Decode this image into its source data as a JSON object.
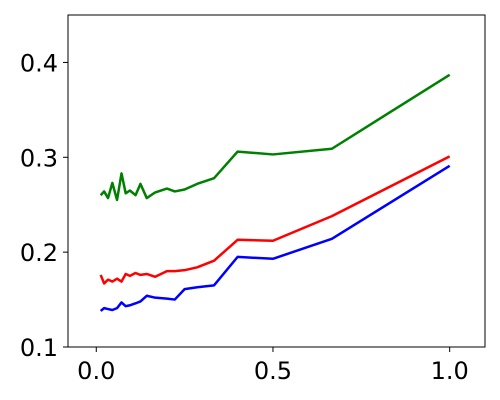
{
  "chart_data": {
    "type": "line",
    "title": "",
    "xlabel": "",
    "ylabel": "",
    "xlim": [
      -0.08,
      1.1
    ],
    "ylim": [
      0.1,
      0.45
    ],
    "x_ticks": [
      {
        "value": 0.0,
        "label": "0.0"
      },
      {
        "value": 0.5,
        "label": "0.5"
      },
      {
        "value": 1.0,
        "label": "1.0"
      }
    ],
    "y_ticks": [
      {
        "value": 0.1,
        "label": "0.1"
      },
      {
        "value": 0.2,
        "label": "0.2"
      },
      {
        "value": 0.3,
        "label": "0.3"
      },
      {
        "value": 0.4,
        "label": "0.4"
      }
    ],
    "grid": false,
    "legend": "none",
    "x": [
      0.0125,
      0.0222,
      0.0333,
      0.0455,
      0.0588,
      0.0714,
      0.0833,
      0.0952,
      0.1111,
      0.125,
      0.1429,
      0.1667,
      0.2,
      0.2222,
      0.25,
      0.2857,
      0.3333,
      0.4,
      0.5,
      0.6667,
      1.0
    ],
    "series": [
      {
        "color": "#008000",
        "values": [
          0.26,
          0.264,
          0.257,
          0.273,
          0.255,
          0.283,
          0.262,
          0.265,
          0.26,
          0.272,
          0.257,
          0.263,
          0.267,
          0.264,
          0.266,
          0.272,
          0.278,
          0.306,
          0.303,
          0.309,
          0.387
        ]
      },
      {
        "color": "#ff0000",
        "values": [
          0.176,
          0.167,
          0.171,
          0.169,
          0.172,
          0.169,
          0.177,
          0.175,
          0.178,
          0.176,
          0.177,
          0.174,
          0.18,
          0.18,
          0.181,
          0.184,
          0.191,
          0.213,
          0.212,
          0.238,
          0.301
        ]
      },
      {
        "color": "#0000ff",
        "values": [
          0.138,
          0.141,
          0.14,
          0.139,
          0.141,
          0.147,
          0.143,
          0.144,
          0.146,
          0.148,
          0.154,
          0.152,
          0.151,
          0.15,
          0.161,
          0.163,
          0.165,
          0.195,
          0.193,
          0.214,
          0.291
        ]
      }
    ]
  }
}
